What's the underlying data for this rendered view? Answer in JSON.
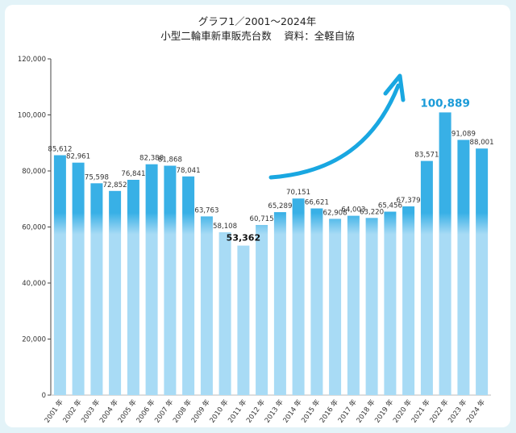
{
  "chart_data": {
    "type": "bar",
    "title": "グラフ1／2001〜2024年",
    "subtitle": "小型二輪車新車販売台数",
    "source": "資料：全軽自協",
    "categories": [
      "2001 年",
      "2002 年",
      "2003 年",
      "2004 年",
      "2005 年",
      "2006 年",
      "2007 年",
      "2008 年",
      "2009 年",
      "2010 年",
      "2011 年",
      "2012 年",
      "2013 年",
      "2014 年",
      "2015 年",
      "2016 年",
      "2017 年",
      "2018 年",
      "2019 年",
      "2020 年",
      "2021 年",
      "2022 年",
      "2023 年",
      "2024 年"
    ],
    "values": [
      85612,
      82961,
      75598,
      72852,
      76841,
      82388,
      81868,
      78041,
      63763,
      58108,
      53362,
      60715,
      65289,
      70151,
      66621,
      62908,
      64003,
      63220,
      65456,
      67379,
      83571,
      100889,
      91089,
      88001
    ],
    "value_labels": [
      "85,612",
      "82,961",
      "75,598",
      "72,852",
      "76,841",
      "82,388",
      "81,868",
      "78,041",
      "63,763",
      "58,108",
      "53,362",
      "60,715",
      "65,289",
      "70,151",
      "66,621",
      "62,908",
      "64,003",
      "63,220",
      "65,456",
      "67,379",
      "83,571",
      "100,889",
      "91,089",
      "88,001"
    ],
    "highlight_min_index": 10,
    "highlight_max_index": 21,
    "ylim": [
      0,
      120000
    ],
    "yticks": [
      0,
      20000,
      40000,
      60000,
      80000,
      100000,
      120000
    ],
    "ytick_labels": [
      "0",
      "20,000",
      "40,000",
      "60,000",
      "80,000",
      "100,000",
      "120,000"
    ],
    "xlabel": "",
    "ylabel": "",
    "grid": false,
    "colors": {
      "bar_top": "#38b0e6",
      "bar_bottom": "#a8dbf5",
      "highlight": "#1a9bd8",
      "arrow": "#19a7e1",
      "card_bg": "#e3f3f8"
    }
  }
}
